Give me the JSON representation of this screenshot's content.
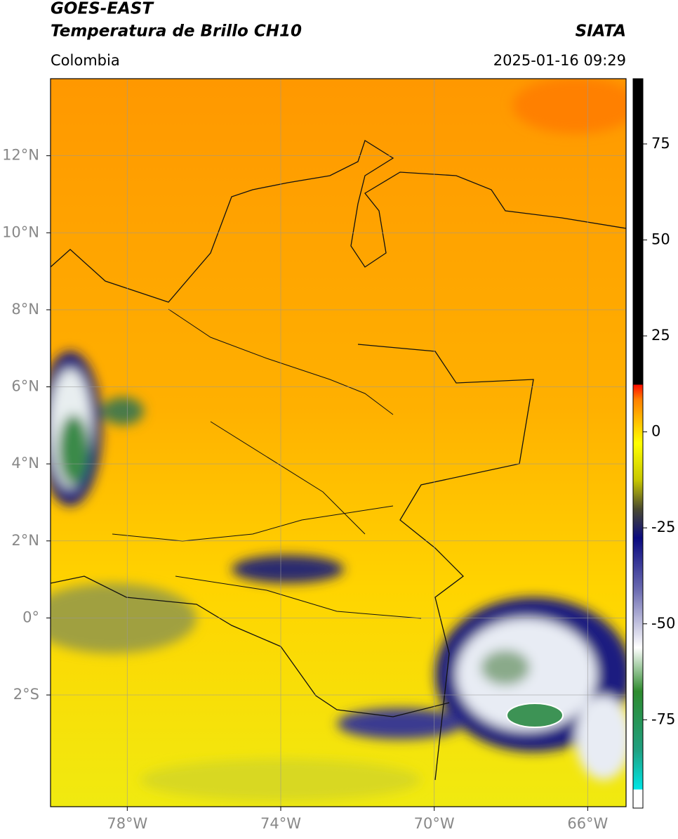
{
  "header": {
    "title": "GOES-EAST",
    "subtitle": "Temperatura de Brillo CH10",
    "region": "Colombia",
    "source": "SIATA",
    "datetime": "2025-01-16 09:29"
  },
  "map": {
    "xlim": [
      -80,
      -65
    ],
    "ylim": [
      -4.9,
      14
    ],
    "yticks": [
      {
        "value": 12,
        "label": "12°N"
      },
      {
        "value": 10,
        "label": "10°N"
      },
      {
        "value": 8,
        "label": "8°N"
      },
      {
        "value": 6,
        "label": "6°N"
      },
      {
        "value": 4,
        "label": "4°N"
      },
      {
        "value": 2,
        "label": "2°N"
      },
      {
        "value": 0,
        "label": "0°"
      },
      {
        "value": -2,
        "label": "2°S"
      }
    ],
    "xticks": [
      {
        "value": -78,
        "label": "78°W"
      },
      {
        "value": -74,
        "label": "74°W"
      },
      {
        "value": -70,
        "label": "70°W"
      },
      {
        "value": -66,
        "label": "66°W"
      }
    ]
  },
  "colorbar": {
    "lim": [
      -98,
      92
    ],
    "ticks": [
      75,
      50,
      25,
      0,
      -25,
      -50,
      -75
    ]
  }
}
